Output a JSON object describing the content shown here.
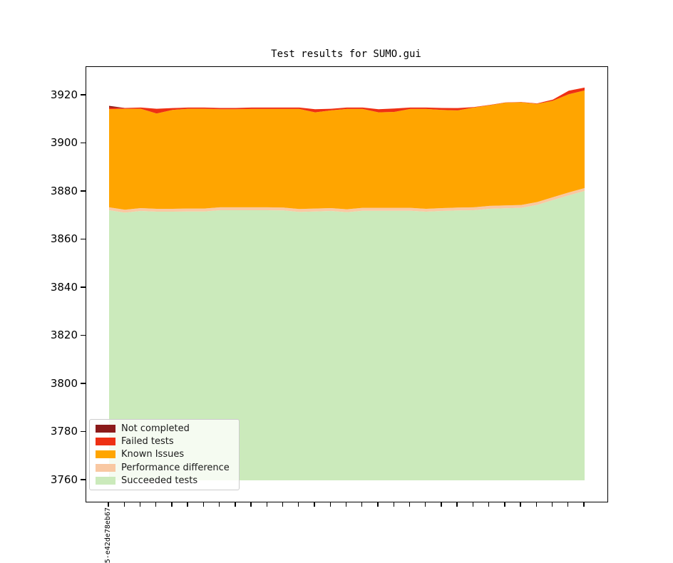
{
  "figure": {
    "title": "Test results for SUMO.gui"
  },
  "y_axis": {
    "tick_labels": [
      "3920",
      "3900",
      "3880",
      "3860",
      "3840",
      "3820",
      "3800",
      "3780",
      "3760"
    ]
  },
  "x_axis": {
    "tick_count": 31,
    "first_tick_label": "5-e42de78eb67"
  },
  "legend": {
    "position": "lower left",
    "items": [
      {
        "label": "Not completed",
        "color": "#8B1A1A"
      },
      {
        "label": "Failed tests",
        "color": "#EE3014"
      },
      {
        "label": "Known Issues",
        "color": "#FFA500"
      },
      {
        "label": "Performance difference",
        "color": "#F9C8A2"
      },
      {
        "label": "Succeeded tests",
        "color": "#CBEABB"
      }
    ]
  },
  "chart_data": {
    "type": "area",
    "stacked": true,
    "title": "Test results for SUMO.gui",
    "xlabel": "",
    "ylabel": "",
    "grid": false,
    "legend_position": "lower left",
    "n_points": 31,
    "x_tick_labels_visible": {
      "0": "5-e42de78eb67"
    },
    "yticks": [
      3920,
      3900,
      3880,
      3860,
      3840,
      3820,
      3800,
      3780,
      3760
    ],
    "ylim": [
      3751,
      3932
    ],
    "baseline": 3760,
    "series": [
      {
        "name": "Succeeded tests",
        "color": "#CBEABB",
        "values": [
          112.3,
          111.3,
          112.0,
          111.7,
          111.7,
          111.8,
          111.8,
          112.3,
          112.3,
          112.3,
          112.3,
          112.2,
          111.6,
          111.8,
          112.0,
          111.5,
          112.1,
          112.1,
          112.1,
          112.1,
          111.7,
          112.0,
          112.2,
          112.3,
          112.9,
          113.1,
          113.3,
          114.5,
          116.5,
          118.5,
          120.3
        ]
      },
      {
        "name": "Performance difference",
        "color": "#F9C8A2",
        "values": [
          1.2,
          1.2,
          1.2,
          1.2,
          1.2,
          1.2,
          1.2,
          1.2,
          1.2,
          1.2,
          1.2,
          1.2,
          1.2,
          1.2,
          1.2,
          1.2,
          1.2,
          1.2,
          1.2,
          1.2,
          1.2,
          1.2,
          1.2,
          1.2,
          1.2,
          1.2,
          1.2,
          1.2,
          1.2,
          1.2,
          1.2
        ]
      },
      {
        "name": "Known Issues",
        "color": "#FFA500",
        "values": [
          40.8,
          42.0,
          41.3,
          39.6,
          41.1,
          41.5,
          41.5,
          40.8,
          40.8,
          40.9,
          40.9,
          41.0,
          41.6,
          40.0,
          40.6,
          41.7,
          41.1,
          39.7,
          39.9,
          41.1,
          41.5,
          40.8,
          40.4,
          41.5,
          41.8,
          42.7,
          42.7,
          40.8,
          40.1,
          40.8,
          40.6
        ]
      },
      {
        "name": "Failed tests",
        "color": "#EE3014",
        "values": [
          0.7,
          0.3,
          0.5,
          2.0,
          0.8,
          0.5,
          0.5,
          0.5,
          0.5,
          0.6,
          0.6,
          0.6,
          0.6,
          1.3,
          0.7,
          0.6,
          0.6,
          1.3,
          1.4,
          0.6,
          0.6,
          0.8,
          1.0,
          0.2,
          0.2,
          0.1,
          0.1,
          0.2,
          0.5,
          1.5,
          1.2
        ]
      },
      {
        "name": "Not completed",
        "color": "#8B1A1A",
        "values": [
          0.7,
          0,
          0,
          0,
          0,
          0,
          0,
          0,
          0,
          0,
          0,
          0,
          0,
          0,
          0,
          0,
          0,
          0,
          0,
          0,
          0,
          0,
          0,
          0,
          0,
          0,
          0,
          0,
          0,
          0,
          0
        ]
      }
    ]
  }
}
